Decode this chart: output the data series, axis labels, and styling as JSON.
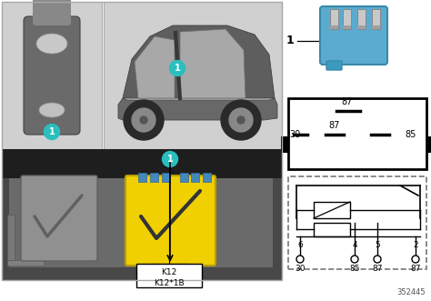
{
  "figsize": [
    4.74,
    3.31
  ],
  "dpi": 100,
  "label_circle_color": "#2abfbf",
  "relay_blue_color": "#5aabcf",
  "relay_yellow_color": "#f0d000",
  "gray_bg": "#d0d0d0",
  "dark_bg": "#404040",
  "darker_bg": "#282828",
  "gray_relay_color": "#909090",
  "k_label1": "K12",
  "k_label2": "K12*1B",
  "ref_number": "352445",
  "white": "#ffffff",
  "black": "#000000",
  "pin_color": "#b0b0b0",
  "blue_dark": "#3a8aaa"
}
